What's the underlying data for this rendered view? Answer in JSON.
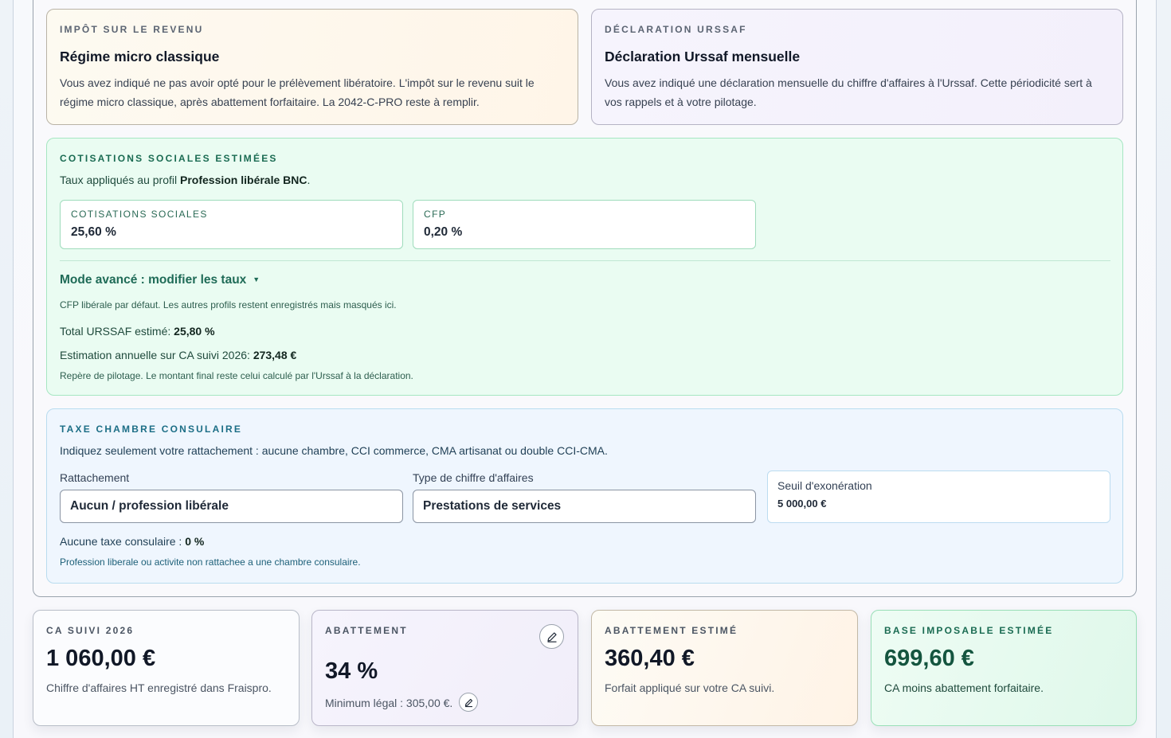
{
  "impot": {
    "eyebrow": "IMPÔT SUR LE REVENU",
    "title": "Régime micro classique",
    "description": "Vous avez indiqué ne pas avoir opté pour le prélèvement libératoire. L'impôt sur le revenu suit le régime micro classique, après abattement forfaitaire. La 2042-C-PRO reste à remplir."
  },
  "urssaf": {
    "eyebrow": "DÉCLARATION URSSAF",
    "title": "Déclaration Urssaf mensuelle",
    "description": "Vous avez indiqué une déclaration mensuelle du chiffre d'affaires à l'Urssaf. Cette périodicité sert à vos rappels et à votre pilotage."
  },
  "cotisations": {
    "eyebrow": "COTISATIONS SOCIALES ESTIMÉES",
    "profile_prefix": "Taux appliqués au profil ",
    "profile_name": "Profession libérale BNC",
    "profile_suffix": ".",
    "rates": [
      {
        "label": "COTISATIONS SOCIALES",
        "value": "25,60 %"
      },
      {
        "label": "CFP",
        "value": "0,20 %"
      }
    ],
    "advanced_toggle": "Mode avancé : modifier les taux",
    "advanced_note": "CFP libérale par défaut. Les autres profils restent enregistrés mais masqués ici.",
    "total_label": "Total URSSAF estimé: ",
    "total_value": "25,80 %",
    "annual_label": "Estimation annuelle sur CA suivi 2026: ",
    "annual_value": "273,48 €",
    "disclaimer": "Repère de pilotage. Le montant final reste celui calculé par l'Urssaf à la déclaration."
  },
  "taxe": {
    "eyebrow": "TAXE CHAMBRE CONSULAIRE",
    "subtitle": "Indiquez seulement votre rattachement : aucune chambre, CCI commerce, CMA artisanat ou double CCI-CMA.",
    "rattachement_label": "Rattachement",
    "rattachement_value": "Aucun / profession libérale",
    "type_label": "Type de chiffre d'affaires",
    "type_value": "Prestations de services",
    "seuil_label": "Seuil d'exonération",
    "seuil_value": "5 000,00 €",
    "result_label": "Aucune taxe consulaire : ",
    "result_value": "0 %",
    "note": "Profession liberale ou activite non rattachee a une chambre consulaire."
  },
  "stats": {
    "ca": {
      "eyebrow": "CA SUIVI 2026",
      "value": "1 060,00 €",
      "note": "Chiffre d'affaires HT enregistré dans Fraispro."
    },
    "abattement": {
      "eyebrow": "ABATTEMENT",
      "value": "34 %",
      "note": "Minimum légal : 305,00 €."
    },
    "abattement_estime": {
      "eyebrow": "ABATTEMENT ESTIMÉ",
      "value": "360,40 €",
      "note": "Forfait appliqué sur votre CA suivi."
    },
    "base": {
      "eyebrow": "BASE IMPOSABLE ESTIMÉE",
      "value": "699,60 €",
      "note": "CA moins abattement forfaitaire."
    }
  },
  "icons": {
    "edit": "pencil-icon",
    "dropdown": "triangle-down-icon"
  }
}
